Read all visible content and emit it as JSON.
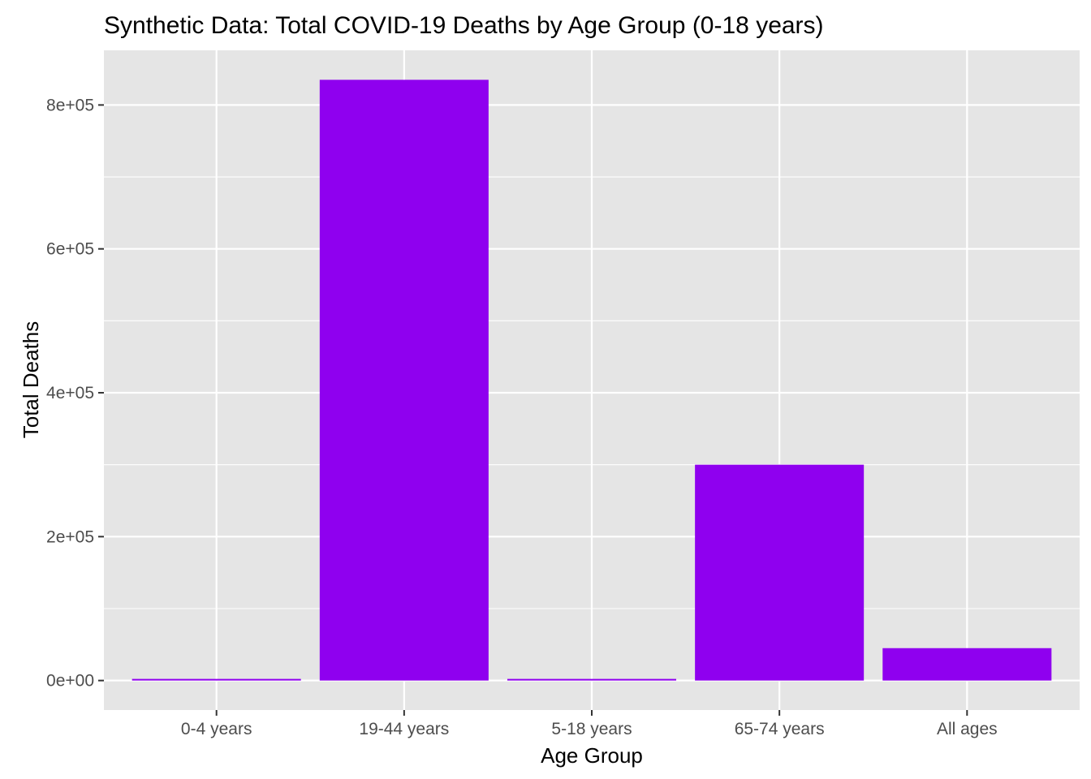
{
  "chart_data": {
    "type": "bar",
    "title": "Synthetic Data: Total COVID-19 Deaths by Age Group (0-18 years)",
    "xlabel": "Age Group",
    "ylabel": "Total Deaths",
    "categories": [
      "0-4 years",
      "19-44 years",
      "5-18 years",
      "65-74 years",
      "All ages"
    ],
    "values": [
      2000,
      835000,
      2000,
      300000,
      45000
    ],
    "ylim": [
      -41000,
      876000
    ],
    "yticks": [
      0,
      200000,
      400000,
      600000,
      800000
    ],
    "ytick_labels": [
      "0e+00",
      "2e+05",
      "4e+05",
      "6e+05",
      "8e+05"
    ],
    "bar_color": "#8F00EF",
    "panel_background": "#E5E5E5",
    "grid_color": "#FFFFFF",
    "grid": true,
    "legend": "none"
  }
}
